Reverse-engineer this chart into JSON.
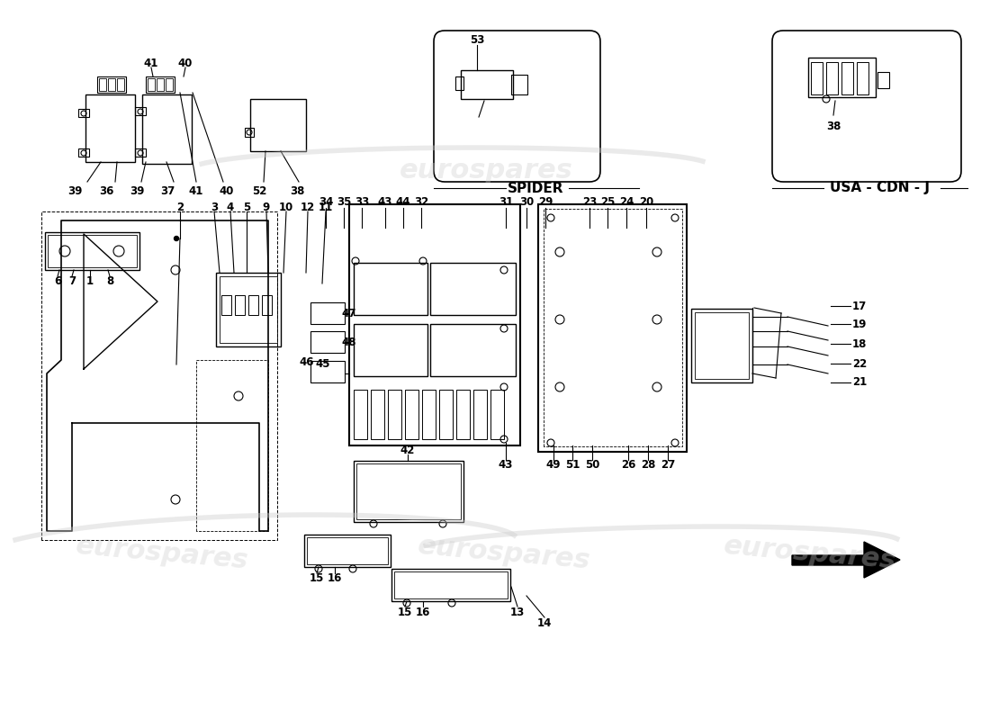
{
  "bg_color": "#ffffff",
  "line_color": "#000000",
  "text_color": "#000000",
  "watermark_color": "#cccccc",
  "fig_width": 11.0,
  "fig_height": 8.0,
  "dpi": 100,
  "watermark_text": "eurospares"
}
